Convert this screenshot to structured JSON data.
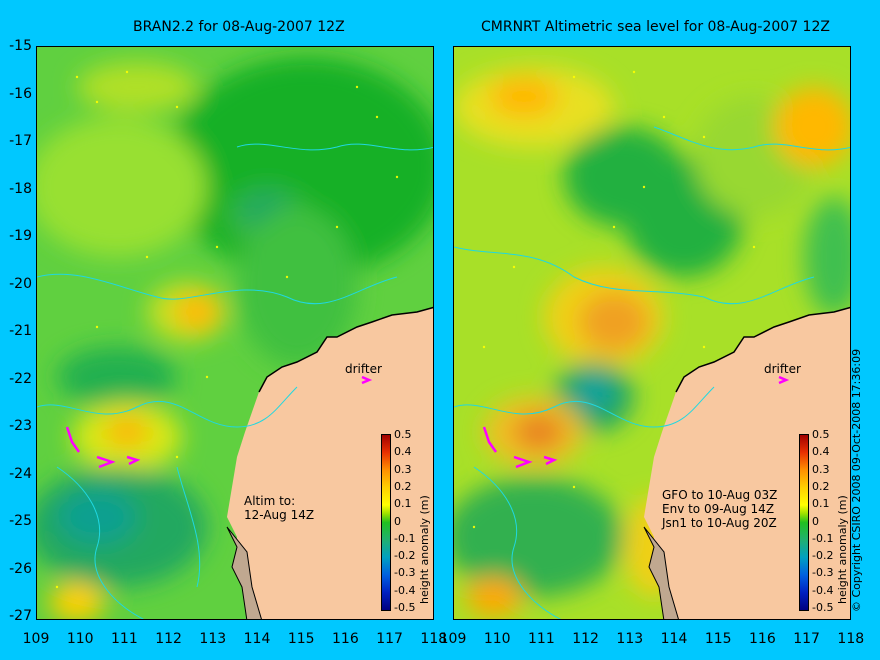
{
  "panels": [
    {
      "title": "BRAN2.2 for 08-Aug-2007 12Z",
      "note": [
        "Altim to:",
        "12-Aug 14Z"
      ],
      "drifter": "drifter"
    },
    {
      "title": "CMRNRT Altimetric sea level  for 08-Aug-2007 12Z",
      "note": [
        "GFO to 10-Aug 03Z",
        "Env to 09-Aug 14Z",
        "Jsn1 to 10-Aug 20Z"
      ],
      "drifter": "drifter"
    }
  ],
  "y_ticks": [
    "-15",
    "-16",
    "-17",
    "-18",
    "-19",
    "-20",
    "-21",
    "-22",
    "-23",
    "-24",
    "-25",
    "-26",
    "-27"
  ],
  "x_ticks": [
    "109",
    "110",
    "111",
    "112",
    "113",
    "114",
    "115",
    "116",
    "117",
    "118"
  ],
  "colorbar": {
    "ticks": [
      "0.5",
      "0.4",
      "0.3",
      "0.2",
      "0.1",
      "0",
      "-0.1",
      "-0.2",
      "-0.3",
      "-0.4",
      "-0.5"
    ],
    "label": "height anomaly (m)"
  },
  "copyright": "© Copyright CSIRO 2008    09-Oct-2008 17:36:09",
  "colors": {
    "background": "#00c8ff",
    "land": "#f8c8a0",
    "shelf": "#c0a890",
    "drifter": "#ff00ff"
  }
}
